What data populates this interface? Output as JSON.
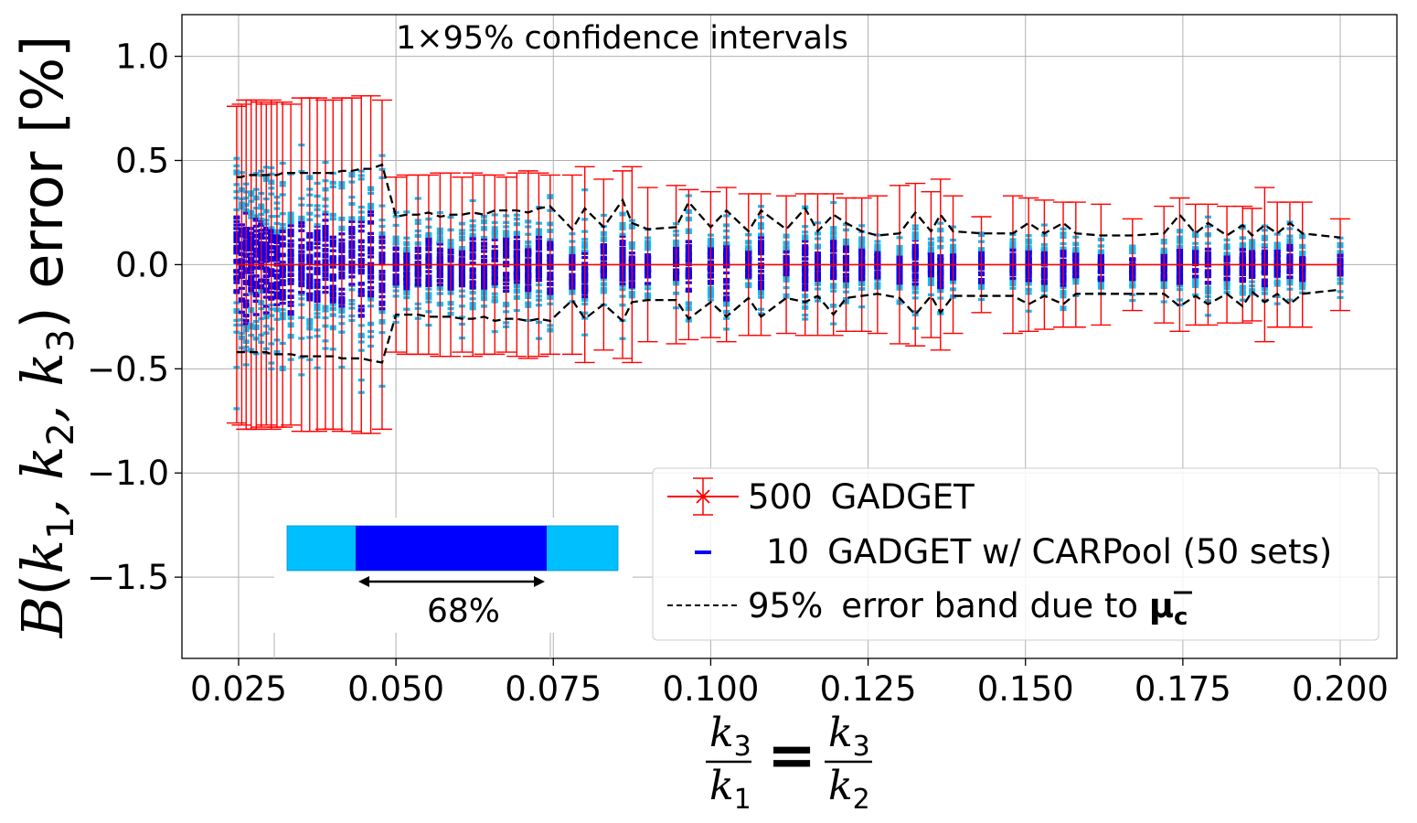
{
  "chart_data": {
    "type": "scatter",
    "title": "",
    "annotation": "1×95% confidence intervals",
    "ylabel": {
      "B": "B",
      "open": "(",
      "k": "k",
      "sub1": "1",
      "sub2": "2",
      "sub3": "3",
      "comma": ", ",
      "close": ")",
      "rest": " error [%]"
    },
    "xlabel": {
      "k": "k",
      "sub1": "1",
      "sub2": "2",
      "sub3": "3",
      "equals": "="
    },
    "xlim": [
      0.016,
      0.209
    ],
    "ylim": [
      -1.89,
      1.2
    ],
    "x_ticks": [
      0.025,
      0.05,
      0.075,
      0.1,
      0.125,
      0.15,
      0.175,
      0.2
    ],
    "x_tick_labels": [
      "0.025",
      "0.050",
      "0.075",
      "0.100",
      "0.125",
      "0.150",
      "0.175",
      "0.200"
    ],
    "y_ticks": [
      1.0,
      0.5,
      0.0,
      -0.5,
      -1.0,
      -1.5
    ],
    "y_tick_labels": [
      "1.0",
      "0.5",
      "0.0",
      "−0.5",
      "−1.0",
      "−1.5"
    ],
    "grid": true,
    "legend_position": "lower-right",
    "legend": [
      {
        "count": "500",
        "label": "GADGET",
        "color": "#ff0000",
        "style": "errorbar"
      },
      {
        "count": "10",
        "label": "GADGET w/ CARPool (50 sets)",
        "color": "#0000ff",
        "style": "dash"
      },
      {
        "count": "95%",
        "label": "error band due to ",
        "mu": "μ",
        "mu_sub": "c",
        "color": "#000000",
        "style": "dashed-line"
      }
    ],
    "colors": {
      "gadget": "#ff0000",
      "carpool_outer": "#00bfff",
      "carpool_inner": "#0000ff",
      "band": "#000000"
    },
    "inset": {
      "label": "68%",
      "inner_fraction": 0.68
    },
    "x": [
      0.0247,
      0.0255,
      0.0262,
      0.027,
      0.0278,
      0.0286,
      0.0294,
      0.0302,
      0.0311,
      0.032,
      0.0333,
      0.035,
      0.0363,
      0.0375,
      0.0388,
      0.04,
      0.0414,
      0.043,
      0.0445,
      0.046,
      0.0478,
      0.05,
      0.0517,
      0.0535,
      0.0552,
      0.057,
      0.0587,
      0.0605,
      0.0622,
      0.064,
      0.0657,
      0.0675,
      0.0692,
      0.071,
      0.0727,
      0.0745,
      0.078,
      0.08,
      0.083,
      0.086,
      0.0875,
      0.09,
      0.0945,
      0.0965,
      0.1,
      0.1025,
      0.106,
      0.108,
      0.112,
      0.115,
      0.117,
      0.1195,
      0.1215,
      0.124,
      0.1265,
      0.13,
      0.1325,
      0.135,
      0.1365,
      0.1385,
      0.143,
      0.148,
      0.1505,
      0.153,
      0.156,
      0.158,
      0.162,
      0.167,
      0.172,
      0.1745,
      0.177,
      0.179,
      0.182,
      0.1845,
      0.186,
      0.188,
      0.19,
      0.192,
      0.194,
      0.2
    ],
    "gadget_errorbar_halfwidth": [
      0.76,
      0.77,
      0.79,
      0.79,
      0.79,
      0.78,
      0.77,
      0.79,
      0.78,
      0.78,
      0.77,
      0.8,
      0.8,
      0.8,
      0.79,
      0.79,
      0.8,
      0.8,
      0.81,
      0.81,
      0.79,
      0.42,
      0.43,
      0.43,
      0.43,
      0.44,
      0.44,
      0.42,
      0.44,
      0.43,
      0.43,
      0.42,
      0.44,
      0.45,
      0.44,
      0.43,
      0.43,
      0.47,
      0.41,
      0.45,
      0.47,
      0.37,
      0.38,
      0.36,
      0.35,
      0.37,
      0.34,
      0.34,
      0.33,
      0.34,
      0.34,
      0.34,
      0.32,
      0.32,
      0.33,
      0.38,
      0.39,
      0.35,
      0.41,
      0.33,
      0.23,
      0.33,
      0.32,
      0.31,
      0.3,
      0.3,
      0.29,
      0.22,
      0.28,
      0.32,
      0.29,
      0.29,
      0.28,
      0.28,
      0.27,
      0.37,
      0.3,
      0.3,
      0.3,
      0.22
    ],
    "band_upper": [
      0.42,
      0.42,
      0.43,
      0.43,
      0.43,
      0.43,
      0.43,
      0.43,
      0.43,
      0.44,
      0.44,
      0.44,
      0.44,
      0.44,
      0.44,
      0.44,
      0.45,
      0.45,
      0.46,
      0.46,
      0.48,
      0.23,
      0.24,
      0.24,
      0.25,
      0.23,
      0.24,
      0.24,
      0.25,
      0.24,
      0.26,
      0.26,
      0.26,
      0.25,
      0.27,
      0.28,
      0.17,
      0.27,
      0.18,
      0.31,
      0.2,
      0.17,
      0.18,
      0.3,
      0.18,
      0.26,
      0.16,
      0.26,
      0.17,
      0.27,
      0.16,
      0.24,
      0.2,
      0.16,
      0.14,
      0.15,
      0.25,
      0.16,
      0.24,
      0.16,
      0.15,
      0.15,
      0.2,
      0.15,
      0.2,
      0.15,
      0.14,
      0.14,
      0.15,
      0.24,
      0.15,
      0.2,
      0.14,
      0.19,
      0.14,
      0.19,
      0.15,
      0.2,
      0.15,
      0.13
    ],
    "band_lower": [
      -0.42,
      -0.42,
      -0.42,
      -0.42,
      -0.42,
      -0.42,
      -0.42,
      -0.43,
      -0.43,
      -0.43,
      -0.43,
      -0.44,
      -0.44,
      -0.44,
      -0.44,
      -0.44,
      -0.45,
      -0.45,
      -0.45,
      -0.46,
      -0.47,
      -0.24,
      -0.24,
      -0.24,
      -0.25,
      -0.25,
      -0.25,
      -0.26,
      -0.26,
      -0.25,
      -0.27,
      -0.26,
      -0.26,
      -0.27,
      -0.26,
      -0.27,
      -0.17,
      -0.26,
      -0.19,
      -0.27,
      -0.18,
      -0.17,
      -0.17,
      -0.26,
      -0.18,
      -0.25,
      -0.16,
      -0.25,
      -0.16,
      -0.18,
      -0.15,
      -0.24,
      -0.16,
      -0.15,
      -0.14,
      -0.16,
      -0.24,
      -0.15,
      -0.23,
      -0.15,
      -0.15,
      -0.15,
      -0.19,
      -0.15,
      -0.19,
      -0.14,
      -0.14,
      -0.14,
      -0.14,
      -0.2,
      -0.15,
      -0.19,
      -0.14,
      -0.2,
      -0.13,
      -0.18,
      -0.14,
      -0.19,
      -0.14,
      -0.12
    ]
  }
}
